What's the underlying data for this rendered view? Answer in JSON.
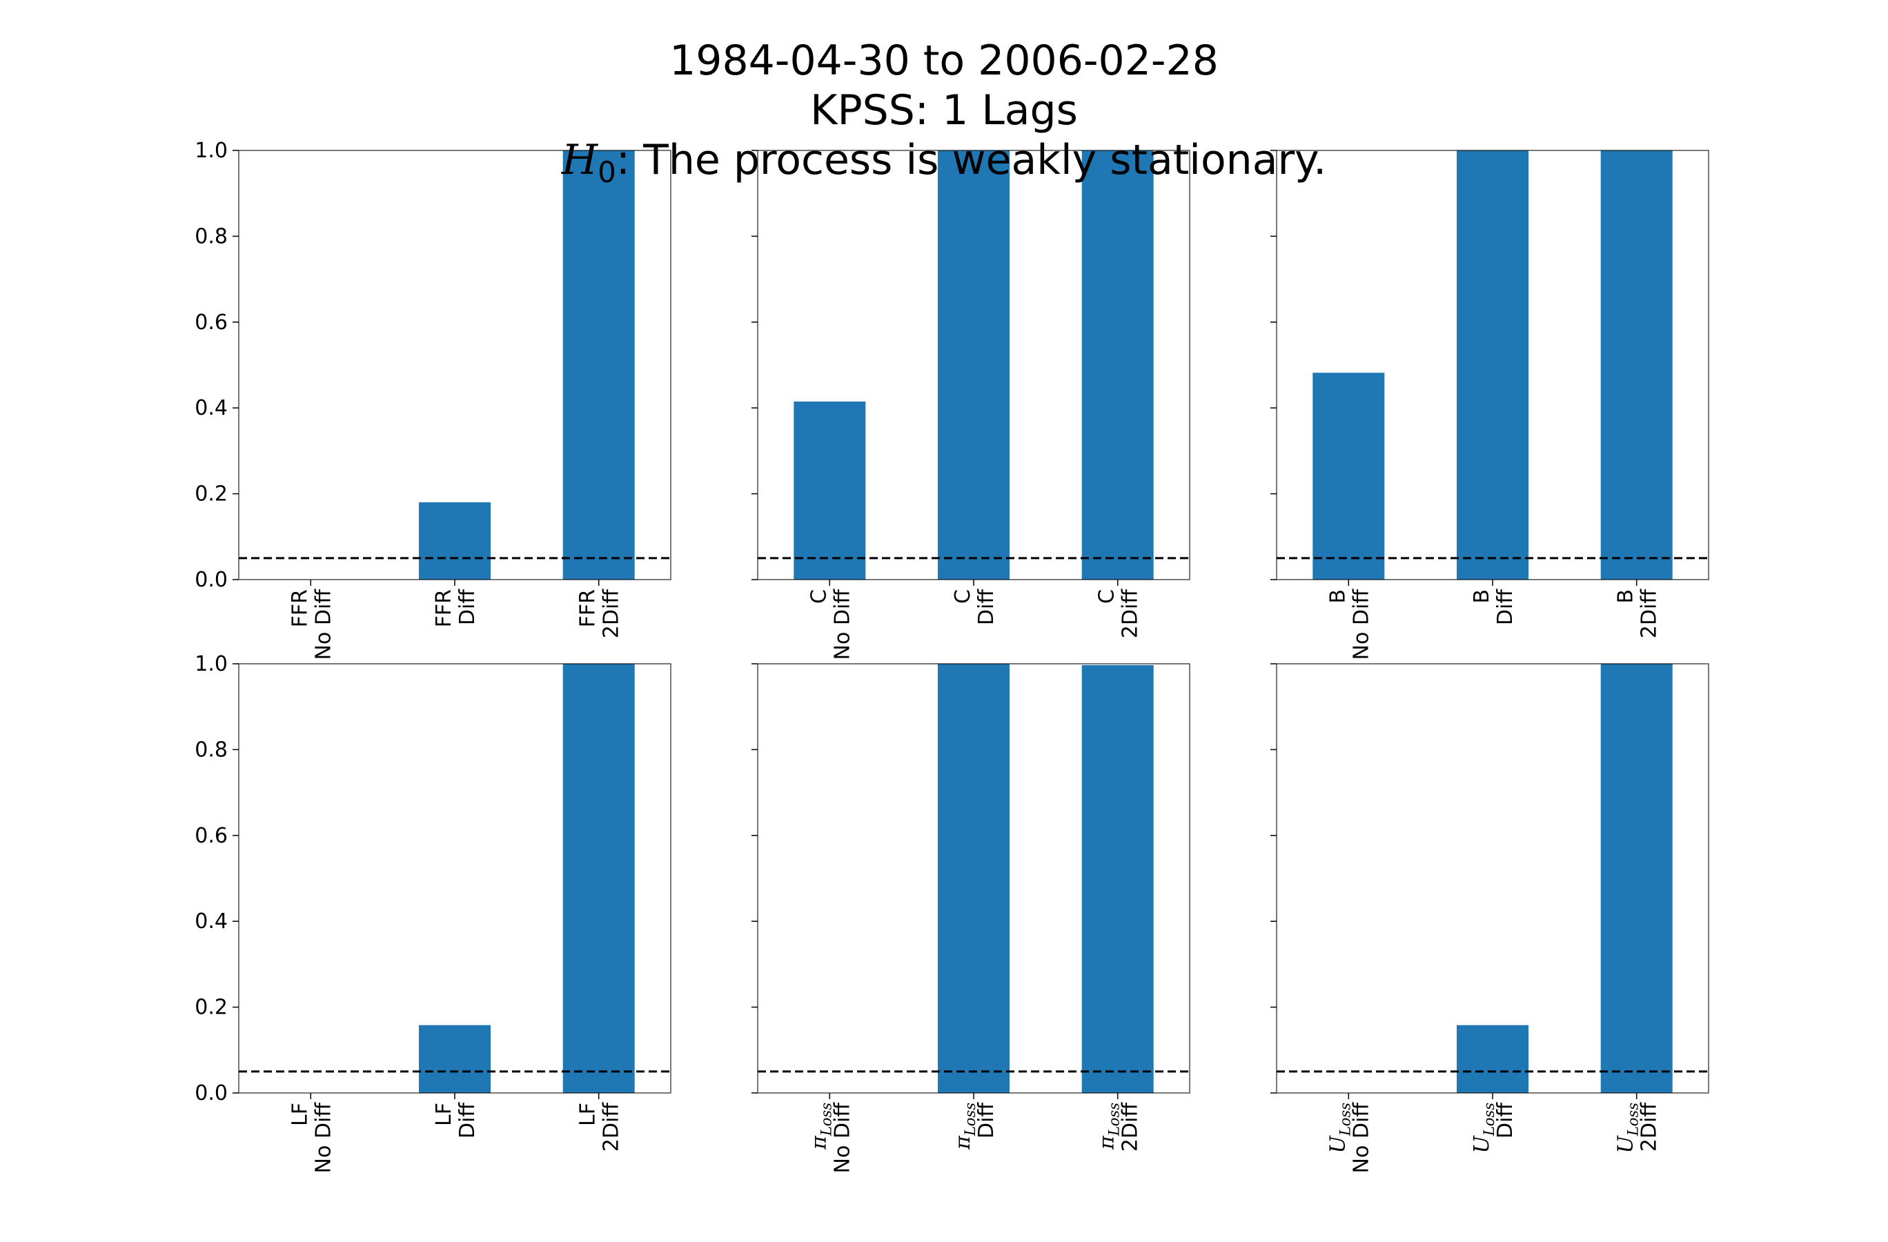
{
  "figure": {
    "title_line1": "1984-04-30 to 2006-02-28",
    "title_line2": "KPSS: 1 Lags",
    "title_line3_var": "H",
    "title_line3_sub": "0",
    "title_line3_rest": ":  The process is weakly stationary."
  },
  "colors": {
    "bar": "#1f77b4",
    "threshold": "#000000",
    "axes": "#000000"
  },
  "chart_data": [
    {
      "type": "bar",
      "panel": "FFR",
      "categories": [
        "FFR\nNo Diff",
        "FFR\nDiff",
        "FFR\n2Diff"
      ],
      "values": [
        0.0,
        0.18,
        1.0
      ],
      "ylim": [
        0,
        1.0
      ],
      "yticks": [
        "0.0",
        "0.2",
        "0.4",
        "0.6",
        "0.8",
        "1.0"
      ],
      "threshold": 0.05
    },
    {
      "type": "bar",
      "panel": "C",
      "categories": [
        "C\nNo Diff",
        "C\nDiff",
        "C\n2Diff"
      ],
      "values": [
        0.415,
        1.0,
        1.0
      ],
      "ylim": [
        0,
        1.0
      ],
      "yticks": [],
      "threshold": 0.05
    },
    {
      "type": "bar",
      "panel": "B",
      "categories": [
        "B\nNo Diff",
        "B\nDiff",
        "B\n2Diff"
      ],
      "values": [
        0.482,
        1.0,
        1.0
      ],
      "ylim": [
        0,
        1.0
      ],
      "yticks": [],
      "threshold": 0.05
    },
    {
      "type": "bar",
      "panel": "LF",
      "categories": [
        "LF\nNo Diff",
        "LF\nDiff",
        "LF\n2Diff"
      ],
      "values": [
        0.0,
        0.158,
        1.0
      ],
      "ylim": [
        0,
        1.0
      ],
      "yticks": [
        "0.0",
        "0.2",
        "0.4",
        "0.6",
        "0.8",
        "1.0"
      ],
      "threshold": 0.05
    },
    {
      "type": "bar",
      "panel": "πLoss",
      "categories": [
        "πLoss\nNo Diff",
        "πLoss\nDiff",
        "πLoss\n2Diff"
      ],
      "values": [
        0.0,
        1.0,
        0.997
      ],
      "ylim": [
        0,
        1.0
      ],
      "yticks": [],
      "threshold": 0.05
    },
    {
      "type": "bar",
      "panel": "ULoss",
      "categories": [
        "ULoss\nNo Diff",
        "ULoss\nDiff",
        "ULoss\n2Diff"
      ],
      "values": [
        0.0,
        0.158,
        1.0
      ],
      "ylim": [
        0,
        1.0
      ],
      "yticks": [],
      "threshold": 0.05
    }
  ]
}
